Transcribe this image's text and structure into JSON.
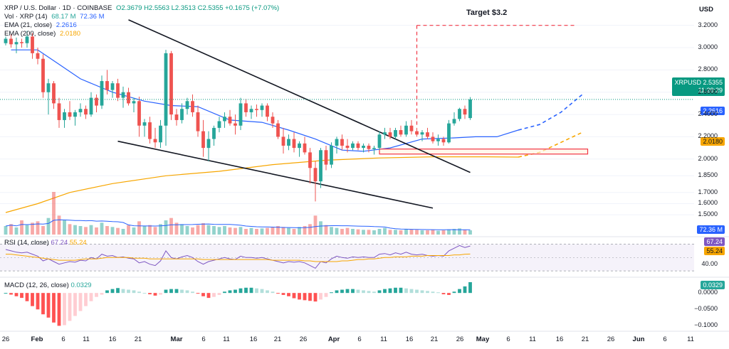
{
  "header": {
    "title": "XRP / U.S. Dollar · 1D · COINBASE",
    "ohlc": "O2.3679  H2.5563  L2.3513  C2.5355  +0.1675 (+7.07%)",
    "vol_label": "Vol · XRP (14)",
    "vol_value": "68.17 M",
    "vol_ma": "72.36 M",
    "ema21_label": "EMA (21, close)",
    "ema21_value": "2.2616",
    "ema200_label": "EMA (200, close)",
    "ema200_value": "2.0180",
    "rsi_label": "RSI (14, close)",
    "rsi_value": "67.24",
    "rsi_ma": "55.24",
    "macd_label": "MACD (12, 26, close)",
    "macd_value": "0.0329",
    "currency": "USD"
  },
  "annotation": {
    "target_label": "Target $3.2"
  },
  "price_tags": {
    "symbol": "XRPUSD",
    "price": "2.5355",
    "countdown": "11:28:29",
    "ema21": "2.2616",
    "ema200": "2.0180",
    "volume": "72.36 M",
    "rsi": "67.24",
    "rsi_ma": "55.24",
    "macd": "0.0329"
  },
  "colors": {
    "up": "#26a69a",
    "down": "#ef5350",
    "ema21": "#2962ff",
    "ema200": "#f7a600",
    "rsi": "#7e57c2",
    "target": "#f23645"
  },
  "axes": {
    "price_ticks": [
      "3.2000",
      "3.0000",
      "2.8000",
      "2.6000",
      "2.4000",
      "2.2000",
      "2.0000",
      "1.8500",
      "1.7000",
      "1.6000",
      "1.5000"
    ],
    "rsi_ticks": [
      "40.00"
    ],
    "macd_ticks": [
      "0.0000",
      "−0.0500",
      "−0.1000"
    ],
    "date_ticks": [
      {
        "label": "26",
        "bold": false
      },
      {
        "label": "Feb",
        "bold": true
      },
      {
        "label": "6",
        "bold": false
      },
      {
        "label": "11",
        "bold": false
      },
      {
        "label": "16",
        "bold": false
      },
      {
        "label": "21",
        "bold": false
      },
      {
        "label": "Mar",
        "bold": true
      },
      {
        "label": "6",
        "bold": false
      },
      {
        "label": "11",
        "bold": false
      },
      {
        "label": "16",
        "bold": false
      },
      {
        "label": "21",
        "bold": false
      },
      {
        "label": "26",
        "bold": false
      },
      {
        "label": "Apr",
        "bold": true
      },
      {
        "label": "6",
        "bold": false
      },
      {
        "label": "11",
        "bold": false
      },
      {
        "label": "16",
        "bold": false
      },
      {
        "label": "21",
        "bold": false
      },
      {
        "label": "26",
        "bold": false
      },
      {
        "label": "May",
        "bold": true
      },
      {
        "label": "6",
        "bold": false
      },
      {
        "label": "11",
        "bold": false
      },
      {
        "label": "16",
        "bold": false
      },
      {
        "label": "21",
        "bold": false
      },
      {
        "label": "26",
        "bold": false
      },
      {
        "label": "Jun",
        "bold": true
      },
      {
        "label": "6",
        "bold": false
      },
      {
        "label": "11",
        "bold": false
      }
    ]
  },
  "chart_data": {
    "type": "candlestick",
    "symbol": "XRPUSD",
    "interval": "1D",
    "price_range": [
      1.45,
      3.3
    ],
    "x_range_days": [
      0,
      108
    ],
    "candles": [
      [
        3.04,
        3.1,
        3.02,
        3.08
      ],
      [
        3.08,
        3.12,
        3.0,
        3.03
      ],
      [
        3.03,
        3.09,
        2.95,
        3.05
      ],
      [
        3.05,
        3.08,
        3.0,
        3.04
      ],
      [
        3.04,
        3.15,
        3.0,
        3.1
      ],
      [
        3.1,
        3.13,
        2.9,
        2.95
      ],
      [
        2.95,
        3.0,
        2.85,
        2.9
      ],
      [
        2.9,
        2.94,
        2.55,
        2.6
      ],
      [
        2.6,
        2.72,
        2.4,
        2.68
      ],
      [
        2.68,
        2.7,
        2.45,
        2.5
      ],
      [
        2.5,
        2.55,
        2.28,
        2.35
      ],
      [
        2.35,
        2.45,
        2.28,
        2.42
      ],
      [
        2.42,
        2.52,
        2.35,
        2.38
      ],
      [
        2.38,
        2.44,
        2.3,
        2.42
      ],
      [
        2.42,
        2.5,
        2.38,
        2.45
      ],
      [
        2.45,
        2.48,
        2.36,
        2.4
      ],
      [
        2.4,
        2.6,
        2.38,
        2.55
      ],
      [
        2.55,
        2.58,
        2.42,
        2.48
      ],
      [
        2.48,
        2.75,
        2.45,
        2.7
      ],
      [
        2.7,
        2.8,
        2.58,
        2.62
      ],
      [
        2.62,
        2.7,
        2.55,
        2.68
      ],
      [
        2.68,
        2.72,
        2.52,
        2.55
      ],
      [
        2.55,
        2.65,
        2.46,
        2.6
      ],
      [
        2.6,
        2.64,
        2.48,
        2.5
      ],
      [
        2.5,
        2.55,
        2.42,
        2.52
      ],
      [
        2.52,
        2.56,
        2.2,
        2.3
      ],
      [
        2.3,
        2.36,
        2.2,
        2.33
      ],
      [
        2.33,
        2.38,
        2.14,
        2.18
      ],
      [
        2.18,
        2.28,
        2.1,
        2.15
      ],
      [
        2.15,
        2.35,
        2.1,
        2.3
      ],
      [
        2.3,
        2.98,
        2.12,
        2.95
      ],
      [
        2.95,
        2.97,
        2.35,
        2.4
      ],
      [
        2.4,
        2.45,
        2.3,
        2.35
      ],
      [
        2.35,
        2.5,
        2.32,
        2.45
      ],
      [
        2.45,
        2.55,
        2.4,
        2.52
      ],
      [
        2.52,
        2.58,
        2.38,
        2.42
      ],
      [
        2.42,
        2.48,
        2.2,
        2.25
      ],
      [
        2.25,
        2.35,
        2.02,
        2.1
      ],
      [
        2.1,
        2.25,
        1.98,
        2.18
      ],
      [
        2.18,
        2.3,
        2.12,
        2.28
      ],
      [
        2.28,
        2.38,
        2.24,
        2.34
      ],
      [
        2.34,
        2.42,
        2.28,
        2.38
      ],
      [
        2.38,
        2.44,
        2.3,
        2.32
      ],
      [
        2.32,
        2.4,
        2.22,
        2.3
      ],
      [
        2.3,
        2.55,
        2.26,
        2.5
      ],
      [
        2.5,
        2.54,
        2.38,
        2.42
      ],
      [
        2.42,
        2.48,
        2.36,
        2.45
      ],
      [
        2.45,
        2.49,
        2.38,
        2.44
      ],
      [
        2.44,
        2.5,
        2.38,
        2.48
      ],
      [
        2.48,
        2.5,
        2.34,
        2.38
      ],
      [
        2.38,
        2.42,
        2.28,
        2.32
      ],
      [
        2.32,
        2.35,
        2.18,
        2.2
      ],
      [
        2.2,
        2.28,
        2.05,
        2.12
      ],
      [
        2.12,
        2.22,
        2.08,
        2.18
      ],
      [
        2.18,
        2.24,
        2.06,
        2.1
      ],
      [
        2.1,
        2.16,
        2.02,
        2.14
      ],
      [
        2.14,
        2.2,
        2.04,
        2.06
      ],
      [
        2.06,
        2.1,
        1.78,
        1.92
      ],
      [
        1.92,
        1.98,
        1.62,
        1.8
      ],
      [
        1.8,
        2.1,
        1.74,
        2.08
      ],
      [
        2.08,
        2.12,
        1.9,
        1.95
      ],
      [
        1.95,
        2.15,
        1.92,
        2.12
      ],
      [
        2.12,
        2.2,
        2.05,
        2.18
      ],
      [
        2.18,
        2.22,
        2.08,
        2.12
      ],
      [
        2.12,
        2.18,
        2.06,
        2.1
      ],
      [
        2.1,
        2.16,
        2.08,
        2.14
      ],
      [
        2.14,
        2.16,
        2.08,
        2.1
      ],
      [
        2.1,
        2.14,
        2.06,
        2.12
      ],
      [
        2.12,
        2.14,
        2.06,
        2.09
      ],
      [
        2.09,
        2.12,
        2.04,
        2.1
      ],
      [
        2.1,
        2.25,
        2.08,
        2.22
      ],
      [
        2.22,
        2.28,
        2.18,
        2.24
      ],
      [
        2.24,
        2.28,
        2.18,
        2.2
      ],
      [
        2.2,
        2.28,
        2.18,
        2.26
      ],
      [
        2.26,
        2.3,
        2.2,
        2.22
      ],
      [
        2.22,
        2.34,
        2.2,
        2.3
      ],
      [
        2.3,
        2.35,
        2.22,
        2.25
      ],
      [
        2.25,
        2.28,
        2.2,
        2.22
      ],
      [
        2.22,
        2.26,
        2.16,
        2.24
      ],
      [
        2.24,
        2.28,
        2.18,
        2.2
      ],
      [
        2.2,
        2.24,
        2.14,
        2.16
      ],
      [
        2.16,
        2.22,
        2.12,
        2.18
      ],
      [
        2.18,
        2.2,
        2.12,
        2.15
      ],
      [
        2.15,
        2.35,
        2.14,
        2.32
      ],
      [
        2.32,
        2.42,
        2.3,
        2.36
      ],
      [
        2.36,
        2.46,
        2.34,
        2.45
      ],
      [
        2.45,
        2.48,
        2.36,
        2.4
      ],
      [
        2.3679,
        2.5563,
        2.3513,
        2.5355
      ]
    ],
    "volume": [
      18,
      22,
      15,
      30,
      20,
      25,
      28,
      18,
      35,
      90,
      40,
      30,
      22,
      20,
      18,
      16,
      20,
      15,
      25,
      18,
      16,
      14,
      12,
      20,
      15,
      28,
      18,
      20,
      16,
      22,
      30,
      35,
      25,
      22,
      18,
      15,
      20,
      24,
      20,
      18,
      16,
      18,
      15,
      14,
      16,
      12,
      14,
      12,
      13,
      14,
      15,
      18,
      16,
      14,
      12,
      16,
      18,
      22,
      40,
      28,
      20,
      16,
      14,
      12,
      14,
      12,
      11,
      10,
      10,
      9,
      12,
      14,
      10,
      10,
      9,
      12,
      11,
      10,
      9,
      9,
      10,
      8,
      9,
      11,
      12,
      13,
      10,
      9
    ],
    "ema21_points": [
      [
        1,
        2.98
      ],
      [
        6,
        2.98
      ],
      [
        10,
        2.85
      ],
      [
        14,
        2.72
      ],
      [
        20,
        2.6
      ],
      [
        26,
        2.52
      ],
      [
        31,
        2.48
      ],
      [
        36,
        2.47
      ],
      [
        42,
        2.35
      ],
      [
        48,
        2.33
      ],
      [
        53,
        2.26
      ],
      [
        58,
        2.18
      ],
      [
        63,
        2.08
      ],
      [
        67,
        2.07
      ],
      [
        72,
        2.1
      ],
      [
        78,
        2.18
      ],
      [
        84,
        2.19
      ],
      [
        88,
        2.2
      ],
      [
        92,
        2.2
      ],
      [
        96,
        2.26
      ]
    ],
    "ema21_projection": [
      [
        96,
        2.26
      ],
      [
        100,
        2.31
      ],
      [
        104,
        2.42
      ],
      [
        108,
        2.58
      ]
    ],
    "ema200_points": [
      [
        0,
        1.52
      ],
      [
        6,
        1.6
      ],
      [
        12,
        1.7
      ],
      [
        20,
        1.78
      ],
      [
        30,
        1.85
      ],
      [
        40,
        1.89
      ],
      [
        50,
        1.95
      ],
      [
        60,
        1.99
      ],
      [
        70,
        2.01
      ],
      [
        80,
        2.02
      ],
      [
        90,
        2.02
      ],
      [
        96,
        2.018
      ]
    ],
    "ema200_projection": [
      [
        96,
        2.018
      ],
      [
        100,
        2.06
      ],
      [
        104,
        2.15
      ],
      [
        108,
        2.24
      ]
    ],
    "trendlines": [
      {
        "from": [
          23,
          3.25
        ],
        "to": [
          87,
          1.88
        ]
      },
      {
        "from": [
          21,
          2.16
        ],
        "to": [
          80,
          1.56
        ]
      }
    ],
    "target_level": 3.2,
    "target_start_day": 77,
    "target_end_day": 107,
    "support_zone": [
      2.045,
      2.09
    ],
    "support_zone_days": [
      70,
      109
    ],
    "rsi": [
      62,
      60,
      58,
      57,
      58,
      55,
      52,
      45,
      48,
      44,
      40,
      42,
      44,
      43,
      46,
      45,
      50,
      48,
      55,
      52,
      53,
      50,
      51,
      49,
      48,
      42,
      44,
      40,
      38,
      45,
      60,
      50,
      48,
      51,
      53,
      50,
      44,
      40,
      44,
      46,
      48,
      50,
      48,
      47,
      52,
      50,
      50,
      49,
      50,
      48,
      46,
      44,
      42,
      44,
      43,
      44,
      42,
      38,
      34,
      44,
      42,
      48,
      52,
      50,
      49,
      51,
      50,
      51,
      50,
      50,
      55,
      56,
      54,
      57,
      55,
      58,
      55,
      54,
      55,
      53,
      52,
      53,
      52,
      60,
      64,
      68,
      65,
      67.24
    ],
    "rsi_ma": [
      55,
      55,
      54,
      53,
      52,
      51,
      50,
      49,
      48,
      47,
      46,
      46,
      46,
      46,
      47,
      48,
      48,
      48,
      49,
      50,
      50,
      50,
      50,
      50,
      49,
      49,
      49,
      48,
      48,
      48,
      48,
      48,
      48,
      48,
      48,
      48,
      48,
      47,
      47,
      47,
      47,
      47,
      47,
      47,
      47,
      47,
      47,
      47,
      47,
      47,
      46,
      46,
      46,
      46,
      46,
      46,
      45,
      45,
      44,
      44,
      44,
      44,
      44,
      45,
      45,
      46,
      47,
      47,
      48,
      48,
      49,
      50,
      50,
      51,
      51,
      51,
      52,
      52,
      52,
      53,
      53,
      53,
      53,
      53,
      54,
      54,
      55,
      55.24
    ],
    "macd_hist": [
      0.0,
      -0.005,
      -0.01,
      -0.015,
      -0.025,
      -0.04,
      -0.05,
      -0.065,
      -0.075,
      -0.09,
      -0.1,
      -0.098,
      -0.085,
      -0.07,
      -0.055,
      -0.04,
      -0.025,
      -0.012,
      -0.005,
      0.008,
      0.012,
      0.015,
      0.012,
      0.01,
      0.008,
      0.004,
      0.0,
      -0.004,
      -0.008,
      -0.005,
      0.01,
      0.012,
      0.012,
      0.01,
      0.008,
      0.004,
      -0.002,
      -0.01,
      -0.015,
      -0.012,
      -0.006,
      0.004,
      0.008,
      0.01,
      0.014,
      0.016,
      0.016,
      0.014,
      0.012,
      0.008,
      0.004,
      -0.002,
      -0.006,
      -0.01,
      -0.016,
      -0.02,
      -0.022,
      -0.024,
      -0.026,
      -0.02,
      -0.012,
      0.002,
      0.008,
      0.01,
      0.012,
      0.012,
      0.01,
      0.008,
      0.006,
      0.004,
      0.008,
      0.012,
      0.014,
      0.016,
      0.016,
      0.014,
      0.012,
      0.01,
      0.008,
      0.006,
      0.004,
      0.002,
      -0.004,
      -0.006,
      0.004,
      0.012,
      0.02,
      0.0329
    ],
    "ranges": {
      "rsi": [
        28,
        78
      ],
      "macd": [
        -0.11,
        0.035
      ]
    }
  }
}
